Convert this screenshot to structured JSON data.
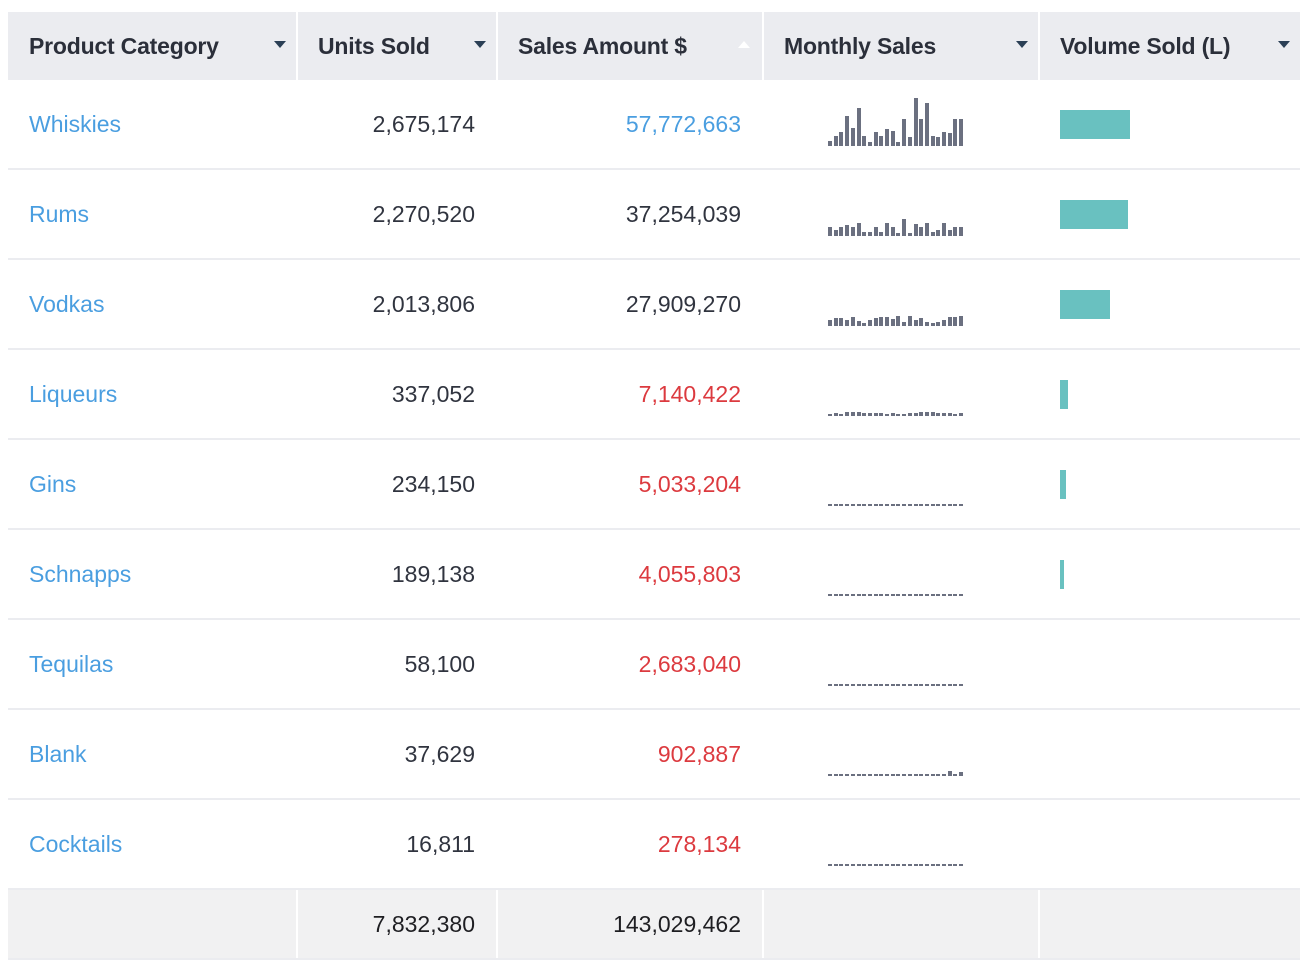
{
  "table": {
    "columns": [
      {
        "label": "Product Category",
        "sort": "none"
      },
      {
        "label": "Units Sold",
        "sort": "none"
      },
      {
        "label": "Sales Amount $",
        "sort": "ascending"
      },
      {
        "label": "Monthly Sales",
        "sort": "none"
      },
      {
        "label": "Volume Sold (L)",
        "sort": "none"
      }
    ],
    "rows": [
      {
        "category": "Whiskies",
        "units": "2,675,174",
        "sales": "57,772,663",
        "sales_status": "high",
        "volume_relative": 1.0,
        "monthly": [
          0.1,
          0.21,
          0.3,
          0.62,
          0.38,
          0.79,
          0.21,
          0.09,
          0.3,
          0.21,
          0.35,
          0.31,
          0.09,
          0.56,
          0.18,
          1.0,
          0.56,
          0.89,
          0.21,
          0.18,
          0.3,
          0.27,
          0.56,
          0.56
        ]
      },
      {
        "category": "Rums",
        "units": "2,270,520",
        "sales": "37,254,039",
        "sales_status": "normal",
        "volume_relative": 0.97,
        "monthly": [
          0.18,
          0.13,
          0.18,
          0.22,
          0.18,
          0.28,
          0.09,
          0.09,
          0.18,
          0.09,
          0.28,
          0.18,
          0.06,
          0.35,
          0.06,
          0.25,
          0.18,
          0.28,
          0.09,
          0.13,
          0.28,
          0.13,
          0.18,
          0.18
        ]
      },
      {
        "category": "Vodkas",
        "units": "2,013,806",
        "sales": "27,909,270",
        "sales_status": "normal",
        "volume_relative": 0.71,
        "monthly": [
          0.13,
          0.17,
          0.17,
          0.13,
          0.19,
          0.11,
          0.06,
          0.13,
          0.17,
          0.19,
          0.19,
          0.15,
          0.21,
          0.09,
          0.21,
          0.13,
          0.17,
          0.09,
          0.06,
          0.09,
          0.13,
          0.19,
          0.19,
          0.21
        ]
      },
      {
        "category": "Liqueurs",
        "units": "337,052",
        "sales": "7,140,422",
        "sales_status": "low",
        "volume_relative": 0.11,
        "monthly": [
          0.04,
          0.06,
          0.04,
          0.08,
          0.08,
          0.09,
          0.06,
          0.06,
          0.06,
          0.06,
          0.04,
          0.06,
          0.04,
          0.04,
          0.06,
          0.06,
          0.08,
          0.09,
          0.08,
          0.06,
          0.06,
          0.06,
          0.04,
          0.06
        ]
      },
      {
        "category": "Gins",
        "units": "234,150",
        "sales": "5,033,204",
        "sales_status": "low",
        "volume_relative": 0.09,
        "monthly": [
          0.05,
          0.05,
          0.05,
          0.05,
          0.05,
          0.05,
          0.03,
          0.03,
          0.03,
          0.05,
          0.05,
          0.05,
          0.05,
          0.05,
          0.05,
          0.05,
          0.05,
          0.05,
          0.05,
          0.03,
          0.03,
          0.03,
          0.05,
          0.05
        ]
      },
      {
        "category": "Schnapps",
        "units": "189,138",
        "sales": "4,055,803",
        "sales_status": "low",
        "volume_relative": 0.06,
        "monthly": [
          0.03,
          0.03,
          0.03,
          0.03,
          0.05,
          0.03,
          0.03,
          0.03,
          0.03,
          0.03,
          0.03,
          0.03,
          0.03,
          0.03,
          0.03,
          0.05,
          0.03,
          0.05,
          0.05,
          0.05,
          0.03,
          0.03,
          0.03,
          0.03
        ]
      },
      {
        "category": "Tequilas",
        "units": "58,100",
        "sales": "2,683,040",
        "sales_status": "low",
        "volume_relative": 0.0,
        "monthly": [
          0.03,
          0.03,
          0.03,
          0.03,
          0.05,
          0.03,
          0.03,
          0.03,
          0.05,
          0.05,
          0.05,
          0.03,
          0.05,
          0.05,
          0.05,
          0.03,
          0.05,
          0.05,
          0.05,
          0.05,
          0.03,
          0.05,
          0.05,
          0.05
        ]
      },
      {
        "category": "Blank",
        "units": "37,629",
        "sales": "902,887",
        "sales_status": "low",
        "volume_relative": 0.0,
        "monthly": [
          0.03,
          0.03,
          0.03,
          0.03,
          0.03,
          0.03,
          0.03,
          0.03,
          0.03,
          0.03,
          0.03,
          0.03,
          0.03,
          0.03,
          0.03,
          0.03,
          0.03,
          0.03,
          0.03,
          0.03,
          0.03,
          0.1,
          0.03,
          0.08
        ]
      },
      {
        "category": "Cocktails",
        "units": "16,811",
        "sales": "278,134",
        "sales_status": "low",
        "volume_relative": 0.0,
        "monthly": [
          0.03,
          0.03,
          0.03,
          0.03,
          0.03,
          0.03,
          0.03,
          0.03,
          0.03,
          0.03,
          0.03,
          0.03,
          0.03,
          0.03,
          0.03,
          0.03,
          0.03,
          0.03,
          0.03,
          0.03,
          0.03,
          0.03,
          0.03,
          0.03
        ]
      }
    ],
    "totals": {
      "category": "",
      "units": "7,832,380",
      "sales": "143,029,462"
    }
  },
  "colors": {
    "link": "#4a9ee0",
    "high_value": "#4a9ee0",
    "low_value": "#dc3a3f",
    "sparkline": "#6b7080",
    "volume_bar": "#69c1c0",
    "header_bg": "#ebecf0"
  }
}
